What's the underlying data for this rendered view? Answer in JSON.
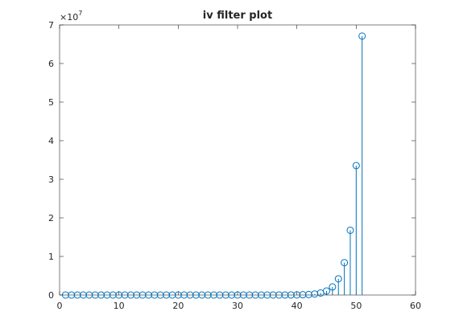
{
  "chart_data": {
    "type": "stem",
    "title": "iv filter plot",
    "axis_multiplier": {
      "base": "×10",
      "exponent": "7"
    },
    "color": "#0072bd",
    "x": [
      1,
      2,
      3,
      4,
      5,
      6,
      7,
      8,
      9,
      10,
      11,
      12,
      13,
      14,
      15,
      16,
      17,
      18,
      19,
      20,
      21,
      22,
      23,
      24,
      25,
      26,
      27,
      28,
      29,
      30,
      31,
      32,
      33,
      34,
      35,
      36,
      37,
      38,
      39,
      40,
      41,
      42,
      43,
      44,
      45,
      46,
      47,
      48,
      49,
      50,
      51
    ],
    "values": [
      5.96e-08,
      1.19e-07,
      2.38e-07,
      4.77e-07,
      9.54e-07,
      1.91e-06,
      3.81e-06,
      7.63e-06,
      1.53e-05,
      3.05e-05,
      6.1e-05,
      0.000122,
      0.000244,
      0.000488,
      0.000977,
      0.00195,
      0.0039,
      0.0078,
      0.0156,
      0.03125,
      0.0625,
      0.125,
      0.25,
      0.5,
      1,
      2,
      4,
      8,
      16,
      32,
      64,
      128,
      256,
      512,
      1024,
      2048,
      4096,
      8192,
      16384,
      32768,
      65536,
      131072,
      262144,
      524288,
      1048576,
      2097152,
      4194304,
      8388608,
      16777216,
      33554432,
      67108864
    ],
    "xlim": [
      0,
      60
    ],
    "xticks": [
      0,
      10,
      20,
      30,
      40,
      50,
      60
    ],
    "ylim": [
      0,
      70000000
    ],
    "yticks": [
      0,
      {
        "value": 10000000,
        "label": "1"
      },
      {
        "value": 20000000,
        "label": "2"
      },
      {
        "value": 30000000,
        "label": "3"
      },
      {
        "value": 40000000,
        "label": "4"
      },
      {
        "value": 50000000,
        "label": "5"
      },
      {
        "value": 60000000,
        "label": "6"
      },
      {
        "value": 70000000,
        "label": "7"
      }
    ]
  }
}
